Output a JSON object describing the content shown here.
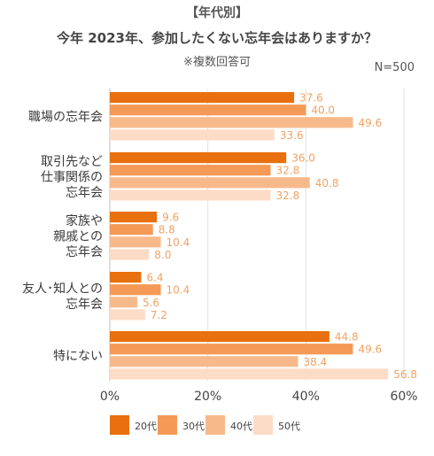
{
  "header": {
    "tag": "【年代別】",
    "title": "今年 2023年、参加したくない忘年会はありますか？",
    "subtitle": "※複数回答可",
    "sample": "N=500"
  },
  "chart_data": {
    "type": "bar",
    "orientation": "horizontal",
    "categories": [
      [
        "職場の忘年会"
      ],
      [
        "取引先など",
        "仕事関係の",
        "忘年会"
      ],
      [
        "家族や",
        "親戚との",
        "忘年会"
      ],
      [
        "友人･知人との",
        "忘年会"
      ],
      [
        "特にない"
      ]
    ],
    "series": [
      {
        "name": "20代",
        "color": "#e8700e",
        "values": [
          37.6,
          36.0,
          9.6,
          6.4,
          44.8
        ]
      },
      {
        "name": "30代",
        "color": "#f49a56",
        "values": [
          40.0,
          32.8,
          8.8,
          10.4,
          49.6
        ]
      },
      {
        "name": "40代",
        "color": "#f8b98a",
        "values": [
          49.6,
          40.8,
          10.4,
          5.6,
          38.4
        ]
      },
      {
        "name": "50代",
        "color": "#fcdcc6",
        "values": [
          33.6,
          32.8,
          8.0,
          7.2,
          56.8
        ]
      }
    ],
    "value_labels": [
      [
        "37.6",
        "36.0",
        "9.6",
        "6.4",
        "44.8"
      ],
      [
        "40.0",
        "32.8",
        "8.8",
        "10.4",
        "49.6"
      ],
      [
        "49.6",
        "40.8",
        "10.4",
        "5.6",
        "38.4"
      ],
      [
        "33.6",
        "32.8",
        "8.0",
        "7.2",
        "56.8"
      ]
    ],
    "label_color": "#f2a264",
    "xlim": [
      0,
      60
    ],
    "xticks": [
      "0%",
      "20%",
      "40%",
      "60%"
    ],
    "grid": true,
    "legend_position": "bottom"
  }
}
